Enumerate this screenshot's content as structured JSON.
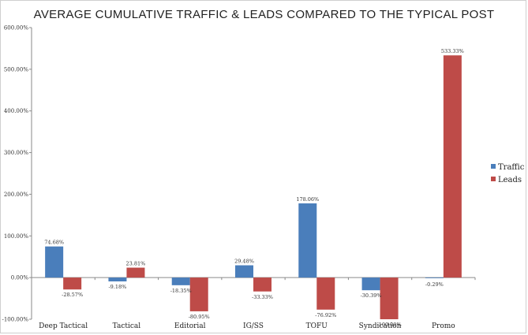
{
  "chart_data": {
    "type": "bar",
    "title": "AVERAGE CUMULATIVE TRAFFIC & LEADS COMPARED TO THE TYPICAL POST",
    "xlabel": "",
    "ylabel": "",
    "ylim": [
      -100,
      600
    ],
    "ytick_step": 100,
    "ytick_labels": [
      "-100.00%",
      "0.00%",
      "100.00%",
      "200.00%",
      "300.00%",
      "400.00%",
      "500.00%",
      "600.00%"
    ],
    "grid": false,
    "legend_position": "right",
    "categories": [
      "Deep Tactical",
      "Tactical",
      "Editorial",
      "IG/SS",
      "TOFU",
      "Syndication",
      "Promo"
    ],
    "series": [
      {
        "name": "Traffic",
        "color": "#4a7ebb",
        "values": [
          74.68,
          -9.18,
          -18.35,
          29.48,
          178.06,
          -30.39,
          -0.29
        ],
        "labels": [
          "74.68%",
          "-9.18%",
          "-18.35%",
          "29.48%",
          "178.06%",
          "-30.39%",
          "-0.29%"
        ]
      },
      {
        "name": "Leads",
        "color": "#be4b48",
        "values": [
          -28.57,
          23.81,
          -80.95,
          -33.33,
          -76.92,
          -100.0,
          533.33
        ],
        "labels": [
          "-28.57%",
          "23.81%",
          "-80.95%",
          "-33.33%",
          "-76.92%",
          "-100.00%",
          "533.33%"
        ]
      }
    ]
  }
}
